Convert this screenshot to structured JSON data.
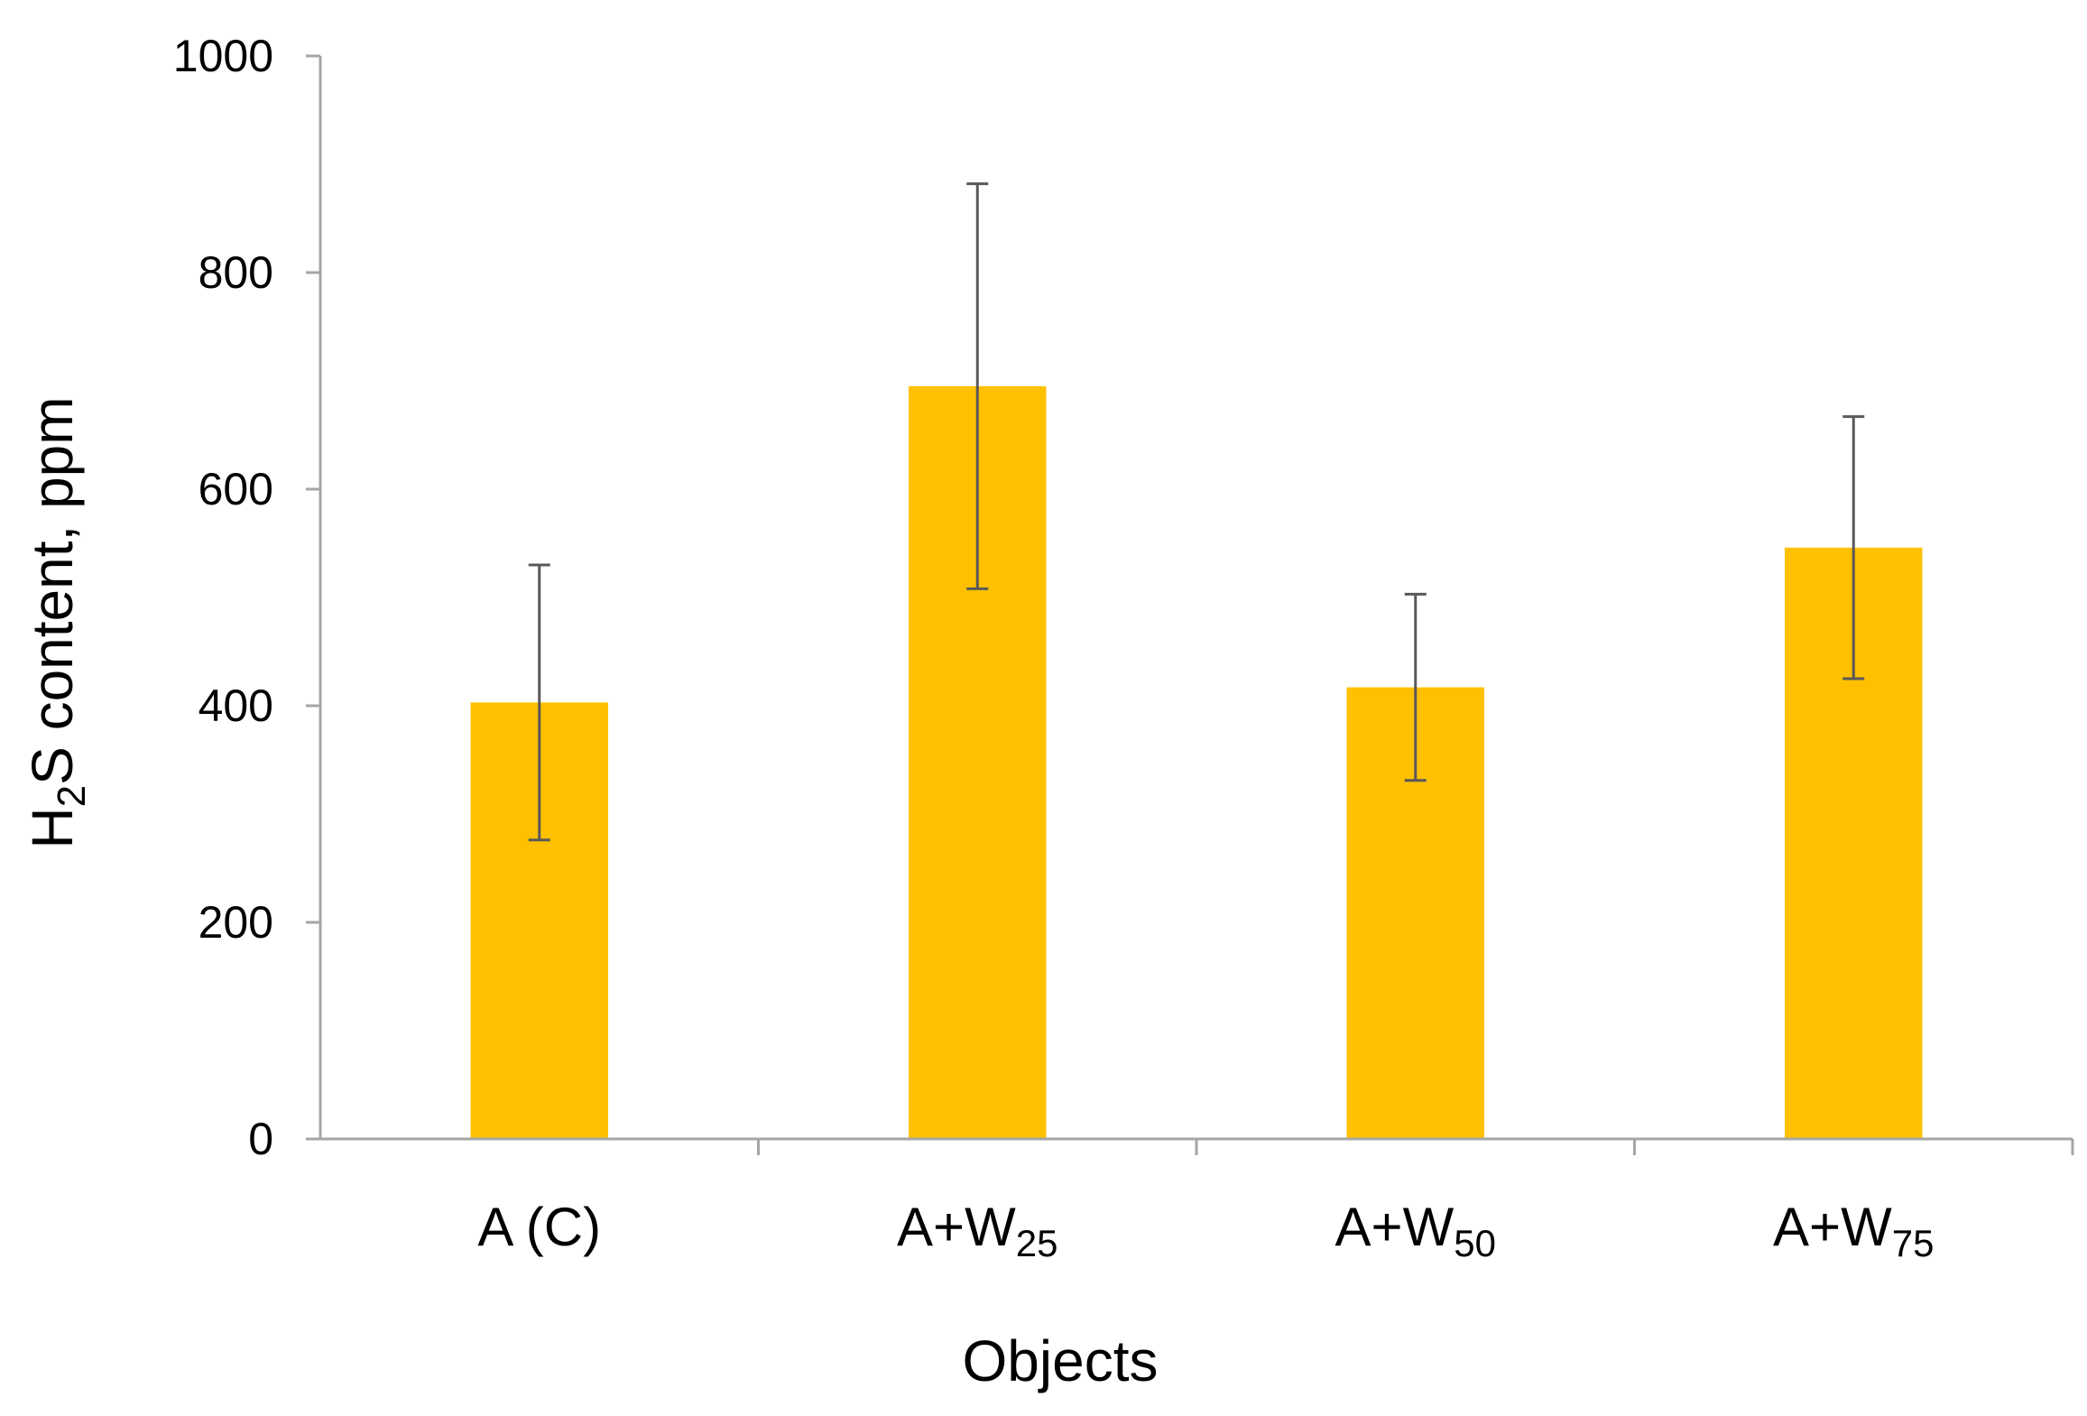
{
  "chart_data": {
    "type": "bar",
    "title": "",
    "xlabel": "Objects",
    "ylabel": {
      "prefix": "H",
      "sub": "2",
      "suffix": "S content, ppm"
    },
    "ylim": [
      0,
      1000
    ],
    "yticks": [
      "0",
      "200",
      "400",
      "600",
      "800",
      "1000"
    ],
    "grid": false,
    "legend": "none",
    "bar_color": "#FFC000",
    "error_bar_color": "#595959",
    "axis_color": "#A6A6A6",
    "categories": [
      {
        "text": "A (C)",
        "sub": ""
      },
      {
        "text": "A+W",
        "sub": "25"
      },
      {
        "text": "A+W",
        "sub": "50"
      },
      {
        "text": "A+W",
        "sub": "75"
      }
    ],
    "values": [
      403,
      695,
      417,
      546
    ],
    "errors": [
      127,
      187,
      86,
      121
    ]
  }
}
